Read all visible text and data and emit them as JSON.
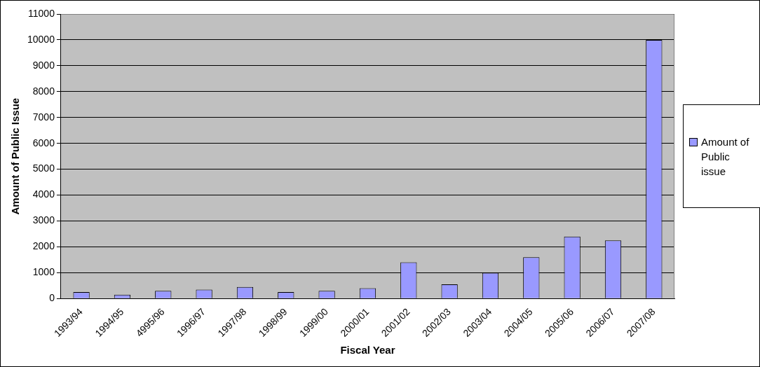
{
  "chart_data": {
    "type": "bar",
    "xlabel": "Fiscal Year",
    "ylabel": "Amount of Public Issue",
    "categories": [
      "1993/94",
      "1994/95",
      "4995/96",
      "1996/97",
      "1997/98",
      "1998/99",
      "1999/00",
      "2000/01",
      "2001/02",
      "2002/03",
      "2003/04",
      "2004/05",
      "2005/06",
      "2006/07",
      "2007/08"
    ],
    "series": [
      {
        "name": "Amount of Public issue",
        "color": "#9999ff",
        "values": [
          250,
          150,
          300,
          350,
          450,
          250,
          300,
          400,
          1400,
          550,
          1000,
          1600,
          2400,
          2250,
          10000
        ]
      }
    ],
    "ylim": [
      0,
      11000
    ],
    "yticks": [
      0,
      1000,
      2000,
      3000,
      4000,
      5000,
      6000,
      7000,
      8000,
      9000,
      10000,
      11000
    ],
    "grid": "y",
    "legend": "right"
  }
}
